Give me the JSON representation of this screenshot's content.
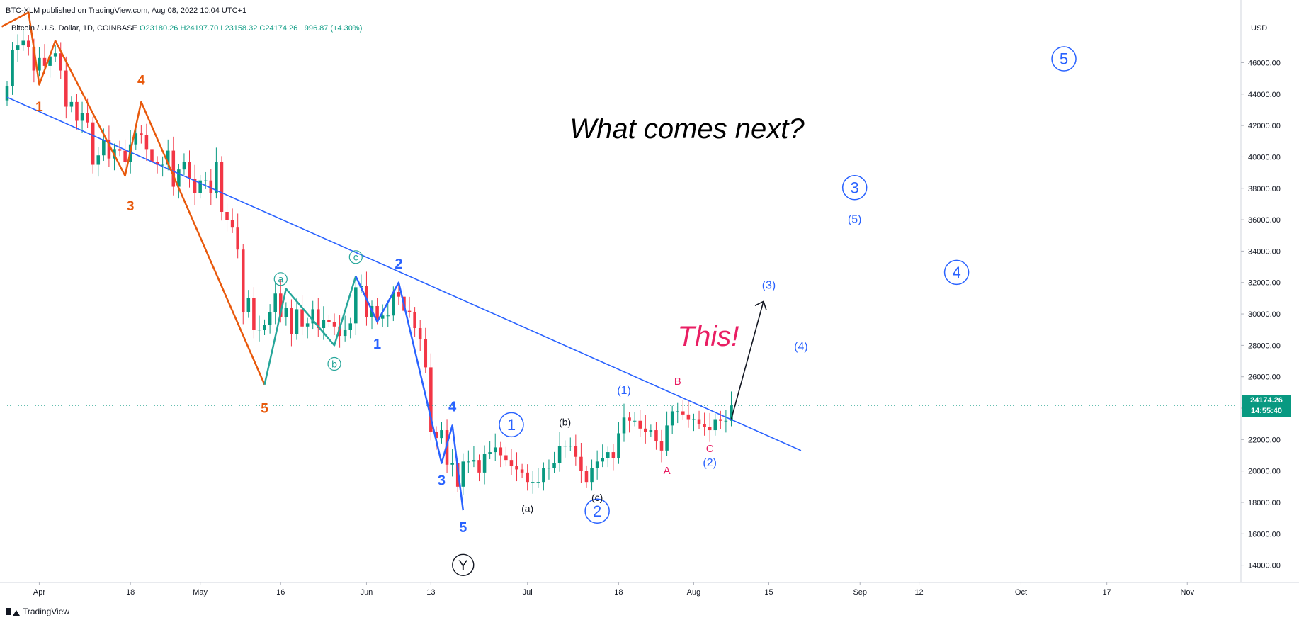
{
  "header": {
    "published": "BTC-XLM published on TradingView.com, Aug 08, 2022 10:04 UTC+1",
    "symbol": "Bitcoin / U.S. Dollar, 1D, COINBASE",
    "open": "O23180.26",
    "high": "H24197.70",
    "low": "L23158.32",
    "close": "C24174.26",
    "change": "+996.87 (+4.30%)",
    "currency": "USD"
  },
  "price_tag": {
    "price": "24174.26",
    "countdown": "14:55:40"
  },
  "brand": {
    "name": "TradingView"
  },
  "colors": {
    "up": "#089981",
    "down": "#f23645",
    "orange_wave": "#e8590c",
    "green_wave": "#26a69a",
    "blue_wave": "#2962ff",
    "trendline": "#2962ff",
    "pink": "#e91e63"
  },
  "chart_data": {
    "type": "candlestick",
    "y_axis": {
      "min": 12900,
      "max": 49000,
      "ticks": [
        "14000.00",
        "16000.00",
        "18000.00",
        "20000.00",
        "22000.00",
        "24000.00",
        "26000.00",
        "28000.00",
        "30000.00",
        "32000.00",
        "34000.00",
        "36000.00",
        "38000.00",
        "40000.00",
        "42000.00",
        "44000.00",
        "46000.00"
      ]
    },
    "x_axis": {
      "start_date": "2022-03-26",
      "end_date": "2022-11-11",
      "ticks": [
        {
          "label": "Apr",
          "date": "2022-04-01"
        },
        {
          "label": "18",
          "date": "2022-04-18"
        },
        {
          "label": "May",
          "date": "2022-05-01"
        },
        {
          "label": "16",
          "date": "2022-05-16"
        },
        {
          "label": "Jun",
          "date": "2022-06-01"
        },
        {
          "label": "13",
          "date": "2022-06-13"
        },
        {
          "label": "Jul",
          "date": "2022-07-01"
        },
        {
          "label": "18",
          "date": "2022-07-18"
        },
        {
          "label": "Aug",
          "date": "2022-08-01"
        },
        {
          "label": "15",
          "date": "2022-08-15"
        },
        {
          "label": "Sep",
          "date": "2022-09-01"
        },
        {
          "label": "12",
          "date": "2022-09-12"
        },
        {
          "label": "Oct",
          "date": "2022-10-01"
        },
        {
          "label": "17",
          "date": "2022-10-17"
        },
        {
          "label": "Nov",
          "date": "2022-11-01"
        }
      ]
    },
    "close_series": [
      [
        "2022-03-26",
        44500
      ],
      [
        "2022-03-27",
        46800
      ],
      [
        "2022-03-28",
        47100
      ],
      [
        "2022-03-29",
        47400
      ],
      [
        "2022-03-30",
        47000
      ],
      [
        "2022-03-31",
        45500
      ],
      [
        "2022-04-01",
        46300
      ],
      [
        "2022-04-02",
        45800
      ],
      [
        "2022-04-03",
        46400
      ],
      [
        "2022-04-04",
        46600
      ],
      [
        "2022-04-05",
        45500
      ],
      [
        "2022-04-06",
        43200
      ],
      [
        "2022-04-07",
        43500
      ],
      [
        "2022-04-08",
        42300
      ],
      [
        "2022-04-09",
        42800
      ],
      [
        "2022-04-10",
        42200
      ],
      [
        "2022-04-11",
        39500
      ],
      [
        "2022-04-12",
        40100
      ],
      [
        "2022-04-13",
        41100
      ],
      [
        "2022-04-14",
        39900
      ],
      [
        "2022-04-15",
        40500
      ],
      [
        "2022-04-16",
        40400
      ],
      [
        "2022-04-17",
        39700
      ],
      [
        "2022-04-18",
        40800
      ],
      [
        "2022-04-19",
        41500
      ],
      [
        "2022-04-20",
        41400
      ],
      [
        "2022-04-21",
        40500
      ],
      [
        "2022-04-22",
        39700
      ],
      [
        "2022-04-23",
        39500
      ],
      [
        "2022-04-24",
        39500
      ],
      [
        "2022-04-25",
        40400
      ],
      [
        "2022-04-26",
        38100
      ],
      [
        "2022-04-27",
        39200
      ],
      [
        "2022-04-28",
        39700
      ],
      [
        "2022-04-29",
        38600
      ],
      [
        "2022-04-30",
        37700
      ],
      [
        "2022-05-01",
        38500
      ],
      [
        "2022-05-02",
        38500
      ],
      [
        "2022-05-03",
        37700
      ],
      [
        "2022-05-04",
        39700
      ],
      [
        "2022-05-05",
        36500
      ],
      [
        "2022-05-06",
        36000
      ],
      [
        "2022-05-07",
        35500
      ],
      [
        "2022-05-08",
        34100
      ],
      [
        "2022-05-09",
        30100
      ],
      [
        "2022-05-10",
        31000
      ],
      [
        "2022-05-11",
        29000
      ],
      [
        "2022-05-12",
        29000
      ],
      [
        "2022-05-13",
        29300
      ],
      [
        "2022-05-14",
        30100
      ],
      [
        "2022-05-15",
        31300
      ],
      [
        "2022-05-16",
        29800
      ],
      [
        "2022-05-17",
        30400
      ],
      [
        "2022-05-18",
        28700
      ],
      [
        "2022-05-19",
        30300
      ],
      [
        "2022-05-20",
        29200
      ],
      [
        "2022-05-21",
        29400
      ],
      [
        "2022-05-22",
        30300
      ],
      [
        "2022-05-23",
        29100
      ],
      [
        "2022-05-24",
        29600
      ],
      [
        "2022-05-25",
        29500
      ],
      [
        "2022-05-26",
        29200
      ],
      [
        "2022-05-27",
        28600
      ],
      [
        "2022-05-28",
        29000
      ],
      [
        "2022-05-29",
        29400
      ],
      [
        "2022-05-30",
        31700
      ],
      [
        "2022-05-31",
        31800
      ],
      [
        "2022-06-01",
        29800
      ],
      [
        "2022-06-02",
        30500
      ],
      [
        "2022-06-03",
        29700
      ],
      [
        "2022-06-04",
        29900
      ],
      [
        "2022-06-05",
        29900
      ],
      [
        "2022-06-06",
        31400
      ],
      [
        "2022-06-07",
        31100
      ],
      [
        "2022-06-08",
        30200
      ],
      [
        "2022-06-09",
        30100
      ],
      [
        "2022-06-10",
        29100
      ],
      [
        "2022-06-11",
        28400
      ],
      [
        "2022-06-12",
        26600
      ],
      [
        "2022-06-13",
        22500
      ],
      [
        "2022-06-14",
        22100
      ],
      [
        "2022-06-15",
        22600
      ],
      [
        "2022-06-16",
        20400
      ],
      [
        "2022-06-17",
        20500
      ],
      [
        "2022-06-18",
        19000
      ],
      [
        "2022-06-19",
        20600
      ],
      [
        "2022-06-20",
        20600
      ],
      [
        "2022-06-21",
        20700
      ],
      [
        "2022-06-22",
        19900
      ],
      [
        "2022-06-23",
        21100
      ],
      [
        "2022-06-24",
        21200
      ],
      [
        "2022-06-25",
        21500
      ],
      [
        "2022-06-26",
        21000
      ],
      [
        "2022-06-27",
        20700
      ],
      [
        "2022-06-28",
        20300
      ],
      [
        "2022-06-29",
        20100
      ],
      [
        "2022-06-30",
        19900
      ],
      [
        "2022-07-01",
        19300
      ],
      [
        "2022-07-02",
        19300
      ],
      [
        "2022-07-03",
        19300
      ],
      [
        "2022-07-04",
        20200
      ],
      [
        "2022-07-05",
        20200
      ],
      [
        "2022-07-06",
        20500
      ],
      [
        "2022-07-07",
        21600
      ],
      [
        "2022-07-08",
        21600
      ],
      [
        "2022-07-09",
        21600
      ],
      [
        "2022-07-10",
        20900
      ],
      [
        "2022-07-11",
        20000
      ],
      [
        "2022-07-12",
        19300
      ],
      [
        "2022-07-13",
        20200
      ],
      [
        "2022-07-14",
        20600
      ],
      [
        "2022-07-15",
        20800
      ],
      [
        "2022-07-16",
        21200
      ],
      [
        "2022-07-17",
        20800
      ],
      [
        "2022-07-18",
        22400
      ],
      [
        "2022-07-19",
        23400
      ],
      [
        "2022-07-20",
        23200
      ],
      [
        "2022-07-21",
        23200
      ],
      [
        "2022-07-22",
        22700
      ],
      [
        "2022-07-23",
        22500
      ],
      [
        "2022-07-24",
        22600
      ],
      [
        "2022-07-25",
        21900
      ],
      [
        "2022-07-26",
        21300
      ],
      [
        "2022-07-27",
        22900
      ],
      [
        "2022-07-28",
        23800
      ],
      [
        "2022-07-29",
        23800
      ],
      [
        "2022-07-30",
        23600
      ],
      [
        "2022-07-31",
        23300
      ],
      [
        "2022-08-01",
        23300
      ],
      [
        "2022-08-02",
        23000
      ],
      [
        "2022-08-03",
        22800
      ],
      [
        "2022-08-04",
        22600
      ],
      [
        "2022-08-05",
        23300
      ],
      [
        "2022-08-06",
        23200
      ],
      [
        "2022-08-07",
        23200
      ],
      [
        "2022-08-08",
        24174
      ]
    ],
    "annotations": [
      {
        "text": "What comes next?",
        "style": "italic-black"
      },
      {
        "text": "This!",
        "style": "italic-pink"
      }
    ],
    "wave_labels": [
      {
        "text": "1",
        "group": "orange"
      },
      {
        "text": "3",
        "group": "orange"
      },
      {
        "text": "4",
        "group": "orange"
      },
      {
        "text": "5",
        "group": "orange"
      },
      {
        "text": "a",
        "group": "green-circled"
      },
      {
        "text": "b",
        "group": "green-circled"
      },
      {
        "text": "c",
        "group": "green-circled"
      },
      {
        "text": "1",
        "group": "blue"
      },
      {
        "text": "2",
        "group": "blue"
      },
      {
        "text": "3",
        "group": "blue"
      },
      {
        "text": "4",
        "group": "blue"
      },
      {
        "text": "5",
        "group": "blue"
      },
      {
        "text": "Y",
        "group": "black-circled"
      },
      {
        "text": "1",
        "group": "blue-circled"
      },
      {
        "text": "2",
        "group": "blue-circled"
      },
      {
        "text": "3",
        "group": "blue-circled"
      },
      {
        "text": "4",
        "group": "blue-circled"
      },
      {
        "text": "5",
        "group": "blue-circled"
      },
      {
        "text": "(a)",
        "group": "black"
      },
      {
        "text": "(b)",
        "group": "black"
      },
      {
        "text": "(c)",
        "group": "black"
      },
      {
        "text": "(1)",
        "group": "blue-paren"
      },
      {
        "text": "(2)",
        "group": "blue-paren"
      },
      {
        "text": "(3)",
        "group": "blue-paren"
      },
      {
        "text": "(4)",
        "group": "blue-paren"
      },
      {
        "text": "(5)",
        "group": "blue-paren"
      },
      {
        "text": "A",
        "group": "pink"
      },
      {
        "text": "B",
        "group": "pink"
      },
      {
        "text": "C",
        "group": "pink"
      }
    ]
  }
}
